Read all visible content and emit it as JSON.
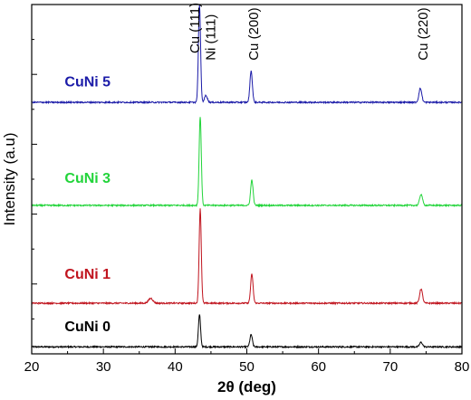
{
  "chart_data": {
    "type": "line",
    "title": "",
    "xlabel": "2θ (deg)",
    "ylabel": "Intensity (a.u)",
    "xlim": [
      20,
      80
    ],
    "ylim": [
      0,
      1
    ],
    "xticks": [
      20,
      30,
      40,
      50,
      60,
      70,
      80
    ],
    "yticks_labeled": false,
    "grid": false,
    "legend": "inline labels on left",
    "series": [
      {
        "name": "CuNi 0",
        "color": "#000000",
        "baseline": 0.02,
        "noise": 0.002,
        "peaks": [
          {
            "x": 43.4,
            "h": 0.092,
            "w": 0.15
          },
          {
            "x": 50.6,
            "h": 0.035,
            "w": 0.17
          },
          {
            "x": 74.3,
            "h": 0.013,
            "w": 0.2
          }
        ]
      },
      {
        "name": "CuNi 1",
        "color": "#c0141e",
        "baseline": 0.145,
        "noise": 0.002,
        "peaks": [
          {
            "x": 36.6,
            "h": 0.014,
            "w": 0.3
          },
          {
            "x": 43.5,
            "h": 0.27,
            "w": 0.15
          },
          {
            "x": 50.7,
            "h": 0.083,
            "w": 0.17
          },
          {
            "x": 74.3,
            "h": 0.041,
            "w": 0.2
          }
        ]
      },
      {
        "name": "CuNi 3",
        "color": "#22d43a",
        "baseline": 0.425,
        "noise": 0.002,
        "peaks": [
          {
            "x": 43.5,
            "h": 0.255,
            "w": 0.15
          },
          {
            "x": 50.7,
            "h": 0.073,
            "w": 0.17
          },
          {
            "x": 74.3,
            "h": 0.032,
            "w": 0.2
          }
        ]
      },
      {
        "name": "CuNi 5",
        "color": "#1b1ba8",
        "baseline": 0.72,
        "noise": 0.002,
        "peaks": [
          {
            "x": 43.4,
            "h": 0.278,
            "w": 0.15
          },
          {
            "x": 44.3,
            "h": 0.02,
            "w": 0.2
          },
          {
            "x": 50.6,
            "h": 0.09,
            "w": 0.17
          },
          {
            "x": 74.2,
            "h": 0.04,
            "w": 0.2
          }
        ]
      }
    ],
    "annotations": [
      {
        "text": "Cu (111)",
        "x": 43.4,
        "y": 0.86
      },
      {
        "text": "Ni (111)",
        "x": 45.6,
        "y": 0.84
      },
      {
        "text": "Cu (200)",
        "x": 51.6,
        "y": 0.84
      },
      {
        "text": "Cu (220)",
        "x": 75.2,
        "y": 0.84
      }
    ],
    "series_label_positions": [
      {
        "x": 24.6,
        "y": 0.065
      },
      {
        "x": 24.6,
        "y": 0.215
      },
      {
        "x": 24.6,
        "y": 0.49
      },
      {
        "x": 24.6,
        "y": 0.765
      }
    ]
  }
}
